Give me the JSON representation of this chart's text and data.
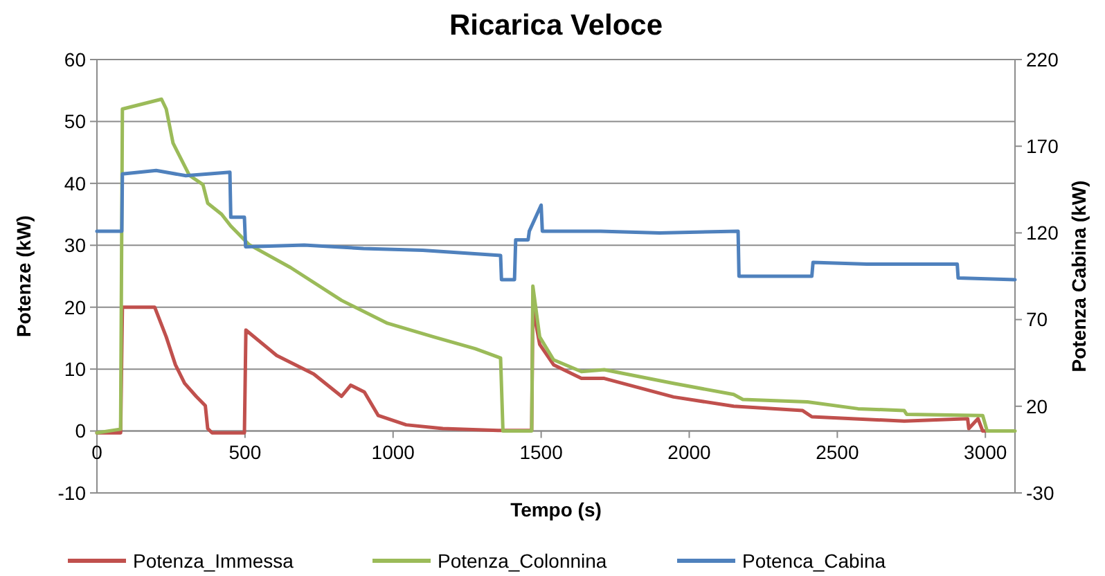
{
  "chart_data": {
    "type": "line",
    "title": "Ricarica Veloce",
    "xlabel": "Tempo (s)",
    "ylabel": "Potenze (kW)",
    "y2label": "Potenza Cabina (kW)",
    "xlim": [
      0,
      3100
    ],
    "xticks": [
      0,
      500,
      1000,
      1500,
      2000,
      2500,
      3000
    ],
    "ylim": [
      -10,
      60
    ],
    "yticks": [
      -10,
      0,
      10,
      20,
      30,
      40,
      50,
      60
    ],
    "y2lim": [
      -30,
      220
    ],
    "y2ticks": [
      -30,
      20,
      70,
      120,
      170,
      220
    ],
    "grid": "y",
    "legend": "bottom",
    "marker": "none",
    "line_style": "solid",
    "series": [
      {
        "name": "Potenza_Immessa",
        "color": "#c0504d",
        "x": [
          0,
          80,
          86,
          195,
          234,
          265,
          296,
          335,
          366,
          374,
          389,
          498,
          503,
          607,
          732,
          826,
          857,
          903,
          950,
          1044,
          1168,
          1355,
          1468,
          1472,
          1495,
          1542,
          1636,
          1713,
          1947,
          2150,
          2383,
          2414,
          2726,
          2940,
          2944,
          2975,
          2991,
          3000
        ],
        "values": [
          -0.3,
          -0.3,
          20,
          20,
          15.2,
          10.7,
          7.7,
          5.6,
          4.1,
          0.4,
          -0.3,
          -0.3,
          16.3,
          12.2,
          9.2,
          5.6,
          7.4,
          6.3,
          2.5,
          1,
          0.4,
          0.1,
          0.1,
          20,
          14,
          10.7,
          8.5,
          8.5,
          5.5,
          4,
          3.3,
          2.3,
          1.6,
          2,
          0.4,
          2,
          0,
          0
        ]
      },
      {
        "name": "Potenza_Colonnina",
        "color": "#9bbb59",
        "x": [
          0,
          80,
          86,
          218,
          234,
          257,
          312,
          358,
          374,
          421,
          452,
          514,
          654,
          826,
          981,
          1137,
          1277,
          1363,
          1371,
          1468,
          1472,
          1495,
          1542,
          1636,
          1713,
          1947,
          2150,
          2181,
          2399,
          2570,
          2726,
          2734,
          2991,
          3006,
          3100
        ],
        "values": [
          -0.3,
          0.3,
          52,
          53.6,
          52,
          46.5,
          41.3,
          39.8,
          36.8,
          35,
          33.1,
          30.1,
          26.4,
          21.1,
          17.4,
          15.2,
          13.3,
          11.8,
          0,
          0,
          23.4,
          15.2,
          11.5,
          9.6,
          9.9,
          7.7,
          5.9,
          5.1,
          4.7,
          3.6,
          3.3,
          2.7,
          2.5,
          0,
          0
        ]
      },
      {
        "name": "Potenca_Cabina",
        "color": "#4f81bd",
        "axis": "y2",
        "x": [
          0,
          84,
          86,
          200,
          300,
          449,
          452,
          498,
          502,
          700,
          900,
          1100,
          1363,
          1366,
          1410,
          1414,
          1456,
          1460,
          1500,
          1504,
          1700,
          1900,
          2165,
          2168,
          2414,
          2418,
          2600,
          2905,
          2908,
          3100
        ],
        "values": [
          121,
          121,
          154,
          156,
          153,
          155,
          129,
          129,
          112,
          113,
          111,
          110,
          107,
          93,
          93,
          116,
          116,
          121,
          136,
          121,
          121,
          120,
          121,
          95,
          95,
          103,
          102,
          102,
          94,
          93
        ]
      }
    ]
  }
}
